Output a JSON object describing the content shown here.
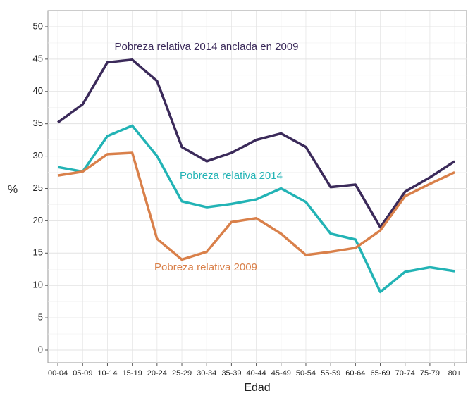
{
  "chart_data": {
    "type": "line",
    "x_label": "Edad",
    "y_label": "%",
    "categories": [
      "00-04",
      "05-09",
      "10-14",
      "15-19",
      "20-24",
      "25-29",
      "30-34",
      "35-39",
      "40-44",
      "45-49",
      "50-54",
      "55-59",
      "60-64",
      "65-69",
      "70-74",
      "75-79",
      "80+"
    ],
    "series": [
      {
        "name": "Pobreza relativa 2014 anclada en 2009",
        "color": "#3b2a5a",
        "values": [
          35.2,
          38.0,
          44.5,
          44.9,
          41.6,
          31.4,
          29.2,
          30.5,
          32.5,
          33.5,
          31.4,
          25.2,
          25.6,
          19.0,
          24.5,
          26.7,
          29.2
        ]
      },
      {
        "name": "Pobreza relativa 2014",
        "color": "#22b3b5",
        "values": [
          28.3,
          27.6,
          33.1,
          34.7,
          30.0,
          23.0,
          22.1,
          22.6,
          23.3,
          25.0,
          22.9,
          18.0,
          17.1,
          9.0,
          12.1,
          12.8,
          12.2
        ]
      },
      {
        "name": "Pobreza relativa 2009",
        "color": "#d9804a",
        "values": [
          27.0,
          27.6,
          30.3,
          30.5,
          17.2,
          14.0,
          15.2,
          19.8,
          20.4,
          18.0,
          14.7,
          15.2,
          15.8,
          18.5,
          23.8,
          25.7,
          27.5
        ]
      }
    ],
    "ylim": [
      -1.96,
      52.5
    ],
    "yticks": [
      0,
      5,
      10,
      15,
      20,
      25,
      30,
      35,
      40,
      45,
      50
    ],
    "grid": true
  }
}
